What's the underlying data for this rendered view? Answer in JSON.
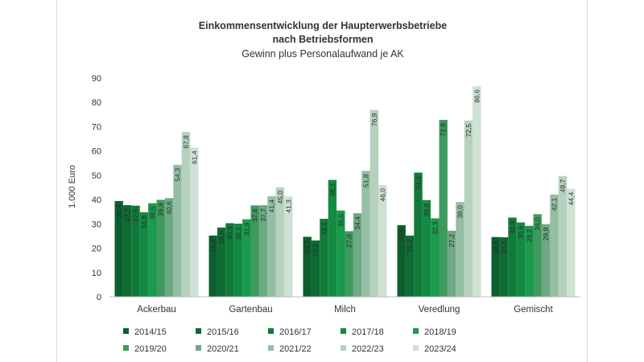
{
  "chart_data": {
    "type": "bar",
    "title": "Einkommensentwicklung der Haupterwerbsbetriebe",
    "title_line2": "nach Betriebsformen",
    "subtitle": "Gewinn plus Personalaufwand je AK",
    "ylabel": "1.000 Euro",
    "xlabel": "",
    "ylim": [
      0,
      90
    ],
    "yticks": [
      0,
      10,
      20,
      30,
      40,
      50,
      60,
      70,
      80,
      90
    ],
    "grid": false,
    "legend_position": "bottom",
    "categories": [
      "Ackerbau",
      "Gartenbau",
      "Milch",
      "Veredlung",
      "Gemischt"
    ],
    "series": [
      {
        "name": "2014/15",
        "color": "#0b5e2d",
        "values": [
          39.4,
          25.2,
          24.7,
          29.5,
          24.6
        ],
        "labels": [
          "39,4",
          "25,2",
          "24,7",
          "29,5",
          "24,6"
        ]
      },
      {
        "name": "2015/16",
        "color": "#0e6b33",
        "values": [
          37.7,
          28.5,
          23.2,
          25.2,
          24.5
        ],
        "labels": [
          "37,7",
          "28,5",
          "23,2",
          "25,2",
          "24,5"
        ]
      },
      {
        "name": "2016/17",
        "color": "#117a3a",
        "values": [
          37.5,
          30.3,
          32.1,
          51.1,
          32.6
        ],
        "labels": [
          "37,5",
          "30,3",
          "32,1",
          "51,1",
          "32,6"
        ]
      },
      {
        "name": "2017/18",
        "color": "#138a41",
        "values": [
          34.8,
          30.1,
          48.1,
          39.8,
          30.6
        ],
        "labels": [
          "34,8",
          "30,1",
          "48,1",
          "39,8",
          "30,6"
        ]
      },
      {
        "name": "2018/19",
        "color": "#1a9a4c",
        "values": [
          38.5,
          31.9,
          35.5,
          32.3,
          29.2
        ],
        "labels": [
          "38,5",
          "31,9",
          "35,5",
          "32,3",
          "29,2"
        ]
      },
      {
        "name": "2019/20",
        "color": "#3f9a5f",
        "values": [
          39.9,
          37.6,
          27.0,
          72.8,
          34.0
        ],
        "labels": [
          "39,9",
          "37,6",
          "27,0",
          "72,8",
          "34,0"
        ]
      },
      {
        "name": "2020/21",
        "color": "#6fa983",
        "values": [
          40.6,
          37.7,
          34.4,
          27.2,
          29.9
        ],
        "labels": [
          "40,6",
          "37,7",
          "34,4",
          "27,2",
          "29,9"
        ]
      },
      {
        "name": "2021/22",
        "color": "#94bfa2",
        "values": [
          54.3,
          41.4,
          51.8,
          39.0,
          42.1
        ],
        "labels": [
          "54,3",
          "41,4",
          "51,8",
          "39,0",
          "42,1"
        ]
      },
      {
        "name": "2022/23",
        "color": "#b6d2bf",
        "values": [
          67.8,
          45.0,
          76.9,
          72.5,
          49.7
        ],
        "labels": [
          "67,8",
          "45,0",
          "76,9",
          "72,5",
          "49,7"
        ]
      },
      {
        "name": "2023/24",
        "color": "#cfe1d4",
        "values": [
          61.4,
          41.3,
          46.0,
          86.6,
          44.4
        ],
        "labels": [
          "61,4",
          "41,3",
          "46,0",
          "86,6",
          "44,4"
        ]
      }
    ]
  }
}
